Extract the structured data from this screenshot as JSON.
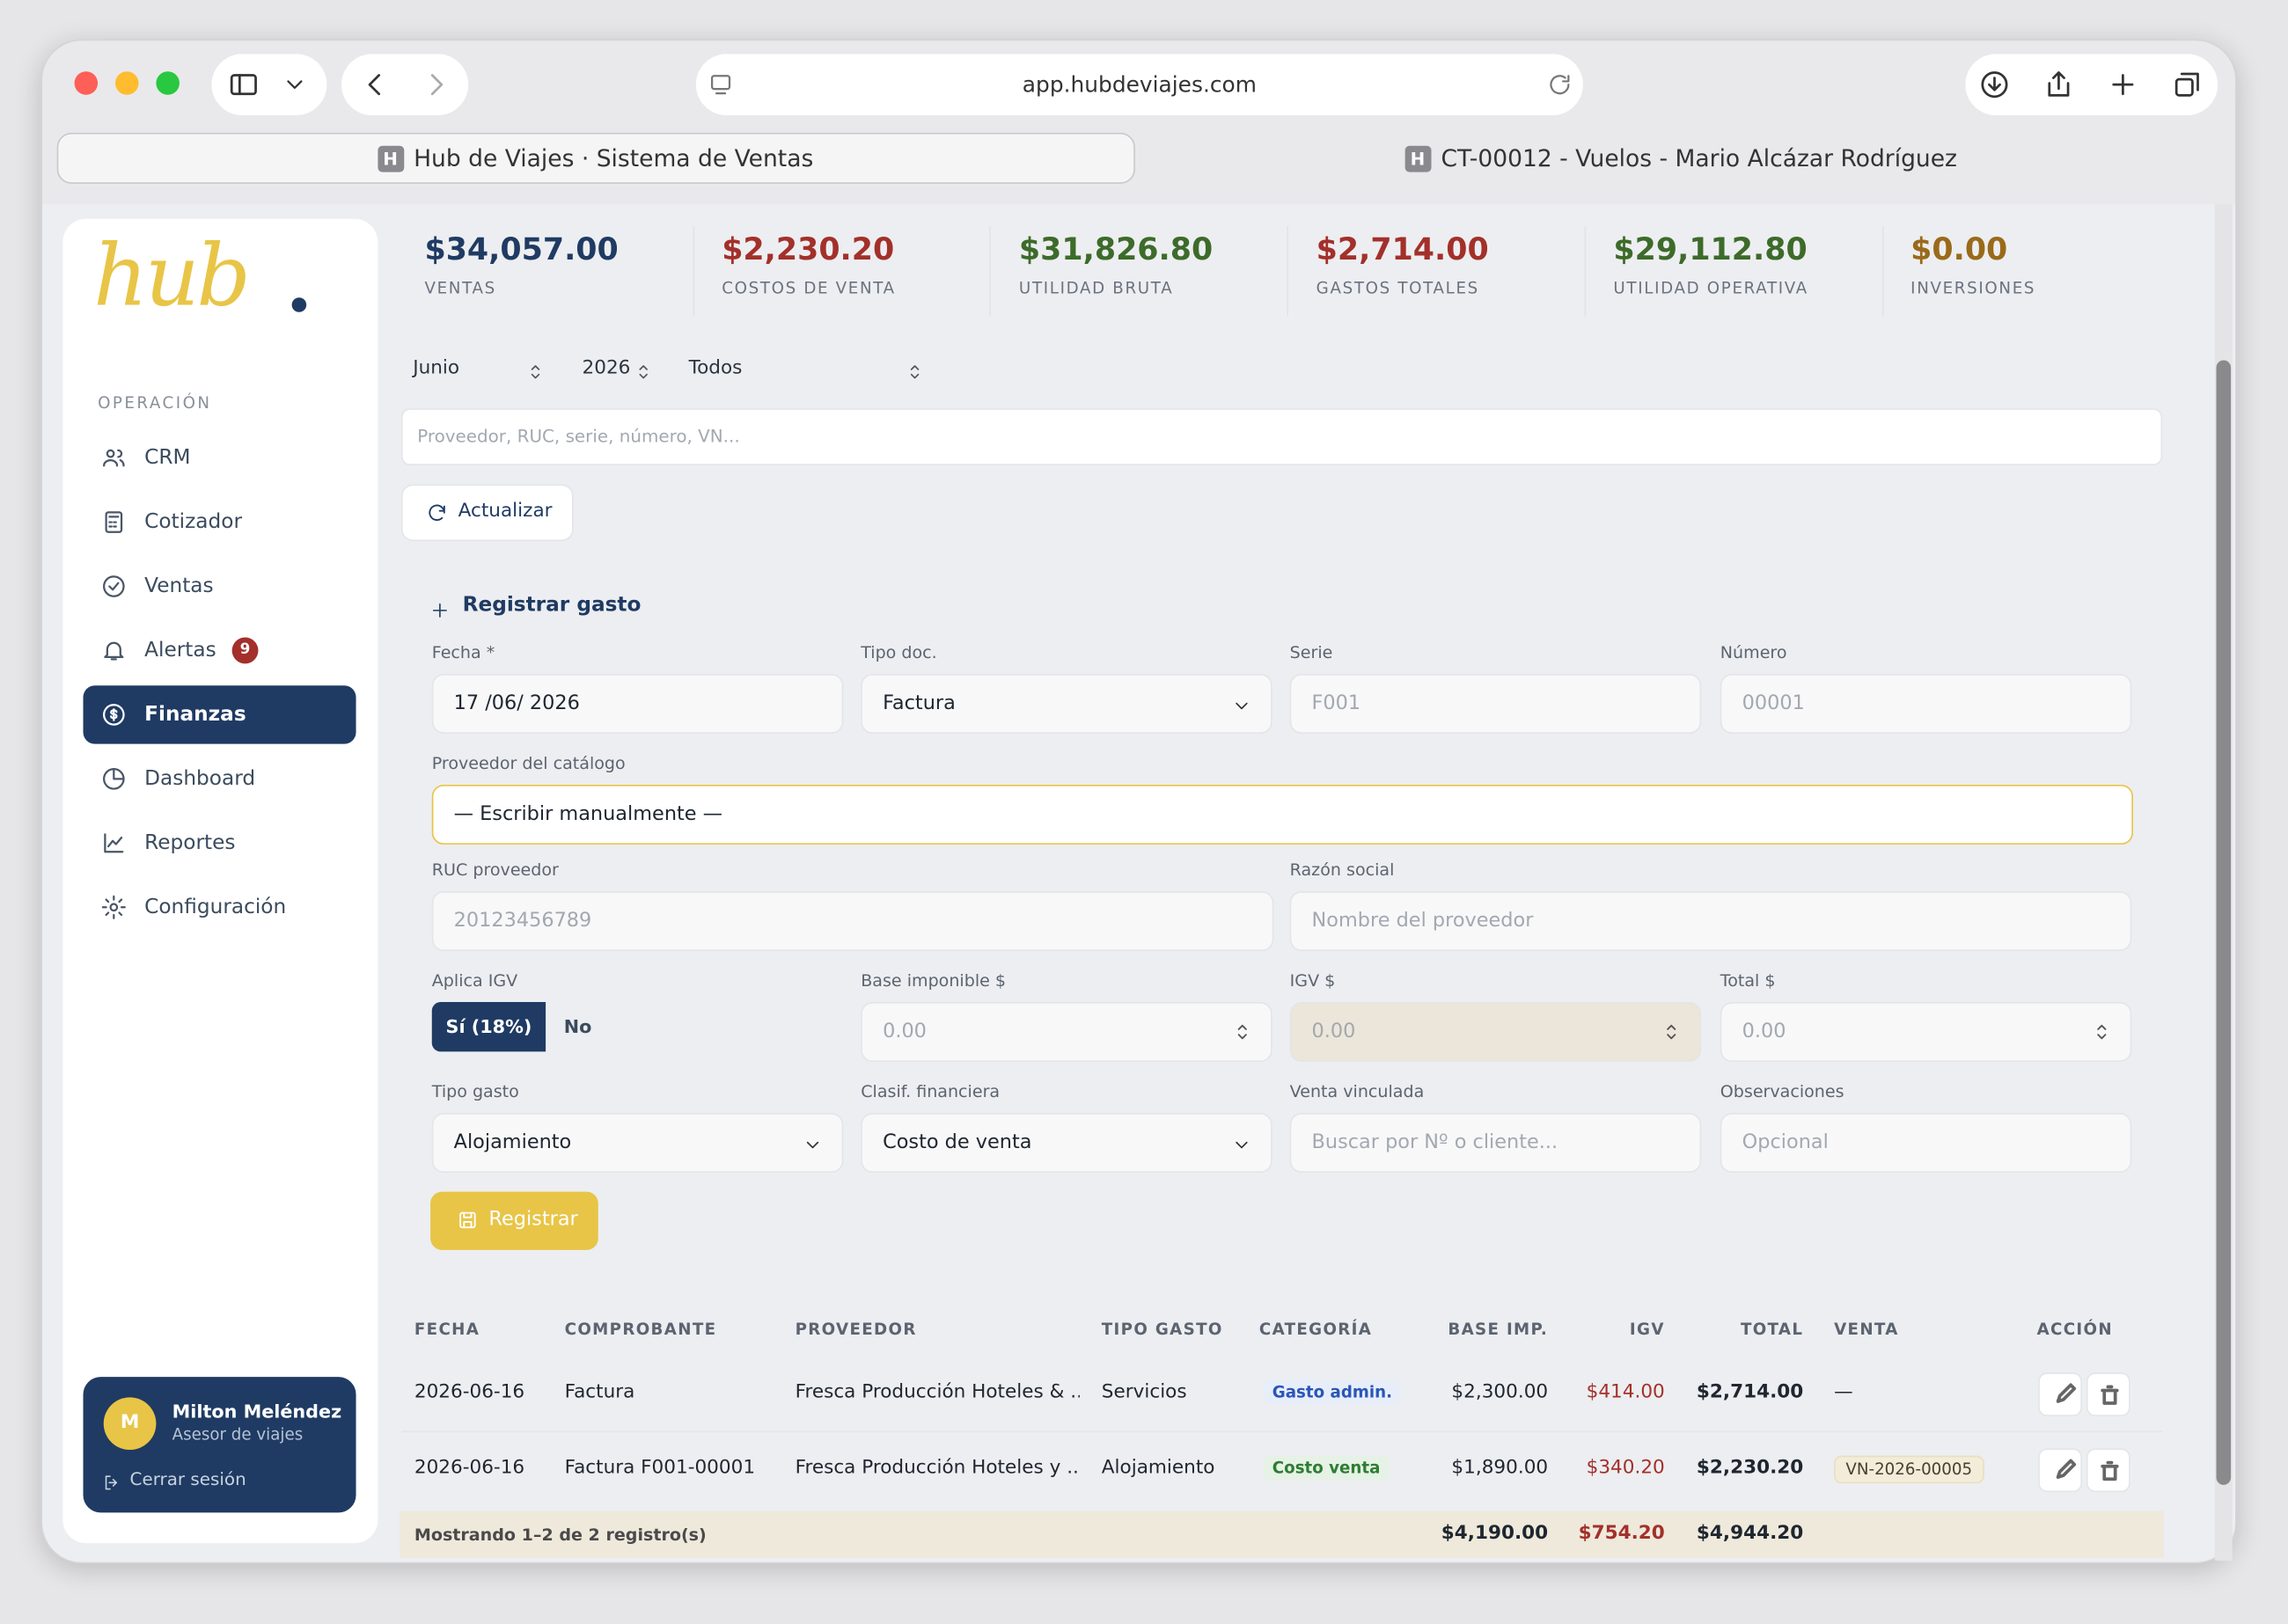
{
  "browser": {
    "url": "app.hubdeviajes.com",
    "tabs": [
      {
        "favicon": "H",
        "title": "Hub de Viajes · Sistema de Ventas"
      },
      {
        "favicon": "H",
        "title": "CT-00012 - Vuelos - Mario Alcázar Rodríguez"
      }
    ]
  },
  "sidebar": {
    "logo": "hub",
    "section": "OPERACIÓN",
    "nav": [
      {
        "label": "CRM"
      },
      {
        "label": "Cotizador"
      },
      {
        "label": "Ventas"
      },
      {
        "label": "Alertas",
        "badge": "9"
      },
      {
        "label": "Finanzas",
        "active": true
      },
      {
        "label": "Dashboard"
      },
      {
        "label": "Reportes"
      },
      {
        "label": "Configuración"
      }
    ],
    "user": {
      "initial": "M",
      "name": "Milton Meléndez",
      "role": "Asesor de viajes",
      "logout": "Cerrar sesión"
    }
  },
  "kpis": [
    {
      "value": "$34,057.00",
      "label": "VENTAS",
      "color": "#1f3b63"
    },
    {
      "value": "$2,230.20",
      "label": "COSTOS DE VENTA",
      "color": "#a3302a"
    },
    {
      "value": "$31,826.80",
      "label": "UTILIDAD BRUTA",
      "color": "#3d6b2a"
    },
    {
      "value": "$2,714.00",
      "label": "GASTOS TOTALES",
      "color": "#a3302a"
    },
    {
      "value": "$29,112.80",
      "label": "UTILIDAD OPERATIVA",
      "color": "#3d6b2a"
    },
    {
      "value": "$0.00",
      "label": "INVERSIONES",
      "color": "#9a6a1a"
    }
  ],
  "filters": {
    "month": "Junio",
    "year": "2026",
    "type": "Todos",
    "search_placeholder": "Proveedor, RUC, serie, número, VN...",
    "refresh": "Actualizar"
  },
  "form": {
    "title": "Registrar gasto",
    "fields": [
      {
        "label": "Fecha *",
        "value": "17 /06/ 2026"
      },
      {
        "label": "Tipo doc.",
        "value": "Factura",
        "select": true
      },
      {
        "label": "Serie",
        "value": "F001",
        "placeholder": true
      },
      {
        "label": "Número",
        "value": "00001",
        "placeholder": true
      },
      {
        "label": "Proveedor del catálogo",
        "value": "— Escribir manualmente —",
        "focused": true
      },
      {
        "label": "RUC proveedor",
        "value": "20123456789",
        "placeholder": true
      },
      {
        "label": "Razón social",
        "value": "Nombre del proveedor",
        "placeholder": true
      },
      {
        "label": "Base imponible $",
        "value": "0.00",
        "placeholder": true,
        "spinner": true
      },
      {
        "label": "IGV $",
        "value": "0.00",
        "placeholder": true,
        "spinner": true,
        "disabled": true
      },
      {
        "label": "Total $",
        "value": "0.00",
        "placeholder": true,
        "spinner": true
      },
      {
        "label": "Tipo gasto",
        "value": "Alojamiento",
        "select": true
      },
      {
        "label": "Clasif. financiera",
        "value": "Costo de venta",
        "select": true
      },
      {
        "label": "Venta vinculada",
        "value": "Buscar por Nº o cliente...",
        "placeholder": true
      },
      {
        "label": "Observaciones",
        "value": "Opcional",
        "placeholder": true
      }
    ],
    "igv": {
      "label": "Aplica IGV",
      "options": [
        "Sí (18%)",
        "No"
      ]
    },
    "submit": "Registrar"
  },
  "table": {
    "headers": [
      "FECHA",
      "COMPROBANTE",
      "PROVEEDOR",
      "TIPO GASTO",
      "CATEGORÍA",
      "BASE IMP.",
      "IGV",
      "TOTAL",
      "VENTA",
      "ACCIÓN"
    ],
    "rows": [
      [
        "2026-06-16",
        "Factura",
        "Fresca Producción Hoteles & ...",
        "Servicios",
        "Gasto admin.",
        "$2,300.00",
        "$414.00",
        "$2,714.00",
        "—"
      ],
      [
        "2026-06-16",
        "Factura F001-00001",
        "Fresca Producción Hoteles y ...",
        "Alojamiento",
        "Costo venta",
        "$1,890.00",
        "$340.20",
        "$2,230.20",
        "VN-2026-00005"
      ]
    ],
    "footer": {
      "text": "Mostrando 1–2 de 2 registro(s)",
      "base": "$4,190.00",
      "igv": "$754.20",
      "total": "$4,944.20"
    }
  }
}
